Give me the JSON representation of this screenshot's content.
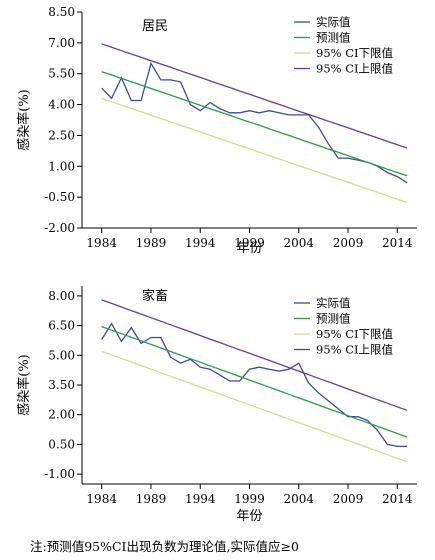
{
  "chart_data": [
    {
      "type": "line",
      "title": "居民",
      "xlabel": "年份",
      "ylabel": "感染率(%)",
      "xlim": [
        1982,
        2016
      ],
      "ylim": [
        -2.0,
        8.5
      ],
      "yticks": [
        "8.50",
        "7.00",
        "5.50",
        "4.00",
        "2.50",
        "1.00",
        "-0.50",
        "-2.00"
      ],
      "xticks": [
        "1984",
        "1989",
        "1994",
        "1999",
        "2004",
        "2009",
        "2014"
      ],
      "legend_position": "top-right",
      "x": [
        1984,
        1985,
        1986,
        1987,
        1988,
        1989,
        1990,
        1991,
        1992,
        1993,
        1994,
        1995,
        1996,
        1997,
        1998,
        1999,
        2000,
        2001,
        2002,
        2003,
        2004,
        2005,
        2006,
        2007,
        2008,
        2009,
        2010,
        2011,
        2012,
        2013,
        2014,
        2015
      ],
      "series": [
        {
          "name": "实际值",
          "color": "#3b4a9a",
          "values": [
            4.8,
            4.3,
            5.3,
            4.2,
            4.2,
            6.0,
            5.2,
            5.2,
            5.1,
            4.0,
            3.7,
            4.1,
            3.8,
            3.6,
            3.6,
            3.7,
            3.6,
            3.7,
            3.6,
            3.5,
            3.5,
            3.5,
            2.9,
            2.1,
            1.4,
            1.4,
            1.3,
            1.2,
            1.0,
            0.7,
            0.5,
            0.2
          ]
        },
        {
          "name": "预测值",
          "color": "#2e9a48",
          "values": [
            5.6,
            5.44,
            5.27,
            5.11,
            4.95,
            4.78,
            4.62,
            4.46,
            4.29,
            4.13,
            3.97,
            3.8,
            3.64,
            3.48,
            3.31,
            3.15,
            2.99,
            2.82,
            2.66,
            2.5,
            2.33,
            2.17,
            2.01,
            1.84,
            1.68,
            1.52,
            1.35,
            1.19,
            1.03,
            0.86,
            0.7,
            0.54
          ]
        },
        {
          "name": "95% CI下限值",
          "color": "#d6dc8a",
          "values": [
            4.3,
            4.14,
            3.97,
            3.81,
            3.65,
            3.48,
            3.32,
            3.16,
            2.99,
            2.83,
            2.67,
            2.5,
            2.34,
            2.18,
            2.01,
            1.85,
            1.69,
            1.52,
            1.36,
            1.2,
            1.03,
            0.87,
            0.71,
            0.54,
            0.38,
            0.22,
            0.05,
            -0.11,
            -0.27,
            -0.44,
            -0.6,
            -0.76
          ]
        },
        {
          "name": "95% CI上限值",
          "color": "#6a3a9a",
          "values": [
            6.95,
            6.79,
            6.62,
            6.46,
            6.3,
            6.13,
            5.97,
            5.81,
            5.64,
            5.48,
            5.32,
            5.15,
            4.99,
            4.83,
            4.66,
            4.5,
            4.34,
            4.17,
            4.01,
            3.85,
            3.68,
            3.52,
            3.36,
            3.19,
            3.03,
            2.87,
            2.7,
            2.54,
            2.38,
            2.21,
            2.05,
            1.89
          ]
        }
      ]
    },
    {
      "type": "line",
      "title": "家畜",
      "xlabel": "年份",
      "ylabel": "感染率(%)",
      "xlim": [
        1982,
        2016
      ],
      "ylim": [
        -1.5,
        8.5
      ],
      "yticks": [
        "8.00",
        "6.50",
        "5.00",
        "3.50",
        "2.00",
        "0.50",
        "-1.00"
      ],
      "xticks": [
        "1984",
        "1989",
        "1994",
        "1999",
        "2004",
        "2009",
        "2014"
      ],
      "legend_position": "top-right",
      "x": [
        1984,
        1985,
        1986,
        1987,
        1988,
        1989,
        1990,
        1991,
        1992,
        1993,
        1994,
        1995,
        1996,
        1997,
        1998,
        1999,
        2000,
        2001,
        2002,
        2003,
        2004,
        2005,
        2006,
        2007,
        2008,
        2009,
        2010,
        2011,
        2012,
        2013,
        2014,
        2015
      ],
      "series": [
        {
          "name": "实际值",
          "color": "#3b4a9a",
          "values": [
            5.8,
            6.6,
            5.7,
            6.4,
            5.6,
            5.9,
            5.9,
            4.9,
            4.6,
            4.8,
            4.4,
            4.3,
            4.0,
            3.7,
            3.7,
            4.3,
            4.4,
            4.3,
            4.2,
            4.3,
            4.6,
            3.6,
            3.1,
            2.7,
            2.3,
            1.9,
            1.9,
            1.7,
            1.2,
            0.5,
            0.4,
            0.4
          ]
        },
        {
          "name": "预测值",
          "color": "#2e9a48",
          "values": [
            6.45,
            6.27,
            6.09,
            5.91,
            5.73,
            5.55,
            5.37,
            5.19,
            5.01,
            4.83,
            4.65,
            4.47,
            4.29,
            4.11,
            3.93,
            3.75,
            3.57,
            3.39,
            3.21,
            3.03,
            2.85,
            2.67,
            2.49,
            2.31,
            2.13,
            1.95,
            1.77,
            1.59,
            1.41,
            1.23,
            1.05,
            0.87
          ]
        },
        {
          "name": "95% CI下限值",
          "color": "#d6dc8a",
          "values": [
            5.2,
            5.02,
            4.84,
            4.66,
            4.48,
            4.3,
            4.12,
            3.94,
            3.76,
            3.58,
            3.4,
            3.22,
            3.04,
            2.86,
            2.68,
            2.5,
            2.32,
            2.14,
            1.96,
            1.78,
            1.6,
            1.42,
            1.24,
            1.06,
            0.88,
            0.7,
            0.52,
            0.34,
            0.16,
            -0.02,
            -0.2,
            -0.38
          ]
        },
        {
          "name": "95% CI上限值",
          "color": "#6a3a9a",
          "values": [
            7.8,
            7.62,
            7.44,
            7.26,
            7.08,
            6.9,
            6.72,
            6.54,
            6.36,
            6.18,
            6.0,
            5.82,
            5.64,
            5.46,
            5.28,
            5.1,
            4.92,
            4.74,
            4.56,
            4.38,
            4.2,
            4.02,
            3.84,
            3.66,
            3.48,
            3.3,
            3.12,
            2.94,
            2.76,
            2.58,
            2.4,
            2.22
          ]
        }
      ]
    }
  ],
  "note": "注:预测值95%CI出现负数为理论值,实际值应≥0"
}
